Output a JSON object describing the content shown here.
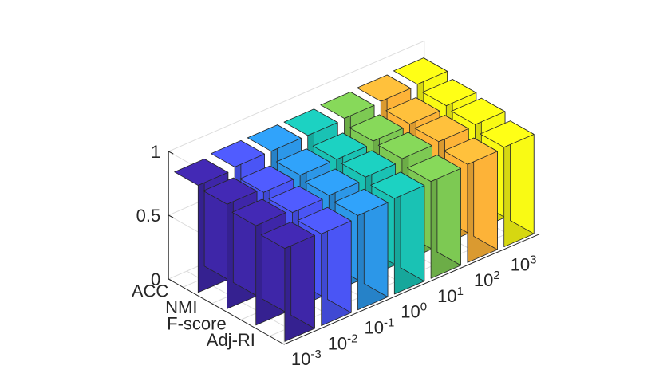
{
  "chart_data": {
    "type": "bar3d",
    "title": "",
    "xlabel": "",
    "ylabel": "",
    "zlim": [
      0,
      1
    ],
    "z_ticks": [
      "0",
      "0.5",
      "1"
    ],
    "metrics": [
      "ACC",
      "NMI",
      "F-score",
      "Adj-RI"
    ],
    "parameter_ticks": [
      {
        "base": "10",
        "exp": "-3"
      },
      {
        "base": "10",
        "exp": "-2"
      },
      {
        "base": "10",
        "exp": "-1"
      },
      {
        "base": "10",
        "exp": "0"
      },
      {
        "base": "10",
        "exp": "1"
      },
      {
        "base": "10",
        "exp": "2"
      },
      {
        "base": "10",
        "exp": "3"
      }
    ],
    "colors": [
      "#3e26a8",
      "#4a55f5",
      "#2c97e8",
      "#1ac2b4",
      "#7dc953",
      "#fdb338",
      "#f9fa14"
    ],
    "series": [
      {
        "name": "ACC",
        "values": [
          0.84,
          0.86,
          0.86,
          0.86,
          0.87,
          0.88,
          0.89
        ]
      },
      {
        "name": "NMI",
        "values": [
          0.82,
          0.79,
          0.8,
          0.8,
          0.82,
          0.83,
          0.85
        ]
      },
      {
        "name": "F-score",
        "values": [
          0.78,
          0.76,
          0.77,
          0.79,
          0.81,
          0.82,
          0.83
        ]
      },
      {
        "name": "Adj-RI",
        "values": [
          0.73,
          0.72,
          0.74,
          0.75,
          0.76,
          0.77,
          0.78
        ]
      }
    ],
    "grid": true
  }
}
